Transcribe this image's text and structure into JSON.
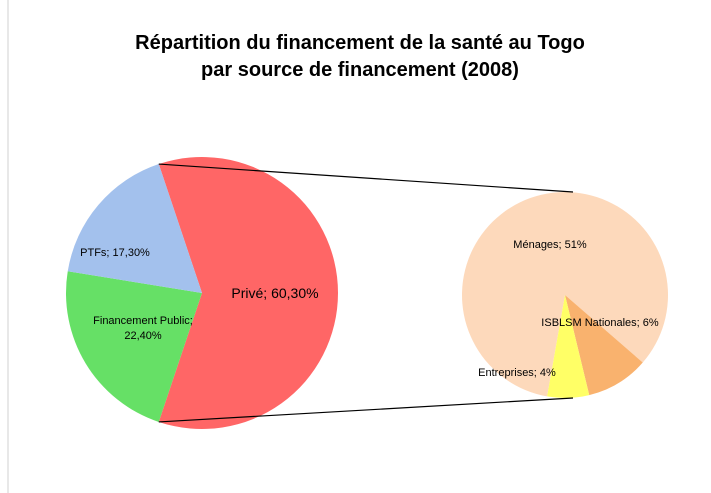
{
  "chart_data": {
    "type": "pie-of-pie",
    "title": "Répartition du financement de la santé au Togo par source de financement (2008)",
    "values": [
      60.3,
      22.4,
      17.3
    ],
    "value_labels": [
      "Privé;  60,30%",
      "Financement Public; 22,40%",
      "PTFs; 17,30%"
    ],
    "colors": [
      "#ff6666",
      "#66e066",
      "#a3c1ed"
    ],
    "secondary": {
      "values": [
        51,
        6,
        4
      ],
      "value_labels": [
        "Ménages; 51%",
        "ISBLSM Nationales; 6%",
        "Entreprises; 4%"
      ],
      "colors": [
        "#fdd9bb",
        "#f9b26e",
        "#ffff66"
      ]
    }
  }
}
